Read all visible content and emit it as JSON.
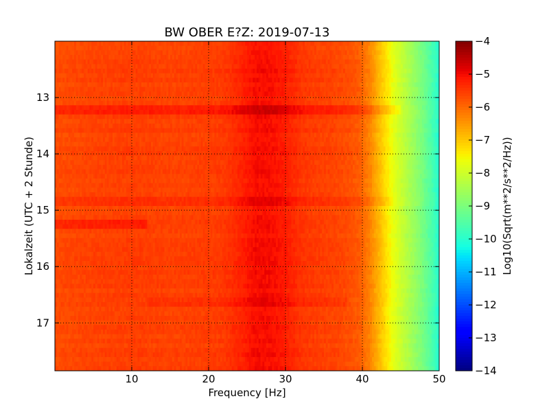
{
  "chart_data": {
    "type": "heatmap",
    "title": "BW OBER E?Z: 2019-07-13",
    "xlabel": "Frequency [Hz]",
    "ylabel": "Lokalzeit (UTC + 2 Stunde)",
    "colorbar_label": "Log10(Sqrt(m**2/s**2/Hz))",
    "xlim": [
      0,
      50
    ],
    "ylim": [
      17.85,
      12.0
    ],
    "y_inverted": true,
    "x_ticks": [
      10,
      20,
      30,
      40,
      50
    ],
    "y_ticks": [
      13,
      14,
      15,
      16,
      17
    ],
    "clim": [
      -14,
      -4
    ],
    "colorbar_ticks": [
      -4,
      -5,
      -6,
      -7,
      -8,
      -9,
      -10,
      -11,
      -12,
      -13,
      -14
    ],
    "colormap": "jet",
    "grid": true,
    "frequency_profile": [
      {
        "freq": 0,
        "log10_amp": -5.7
      },
      {
        "freq": 5,
        "log10_amp": -5.6
      },
      {
        "freq": 10,
        "log10_amp": -5.55
      },
      {
        "freq": 15,
        "log10_amp": -5.6
      },
      {
        "freq": 20,
        "log10_amp": -5.55
      },
      {
        "freq": 22,
        "log10_amp": -5.5
      },
      {
        "freq": 24,
        "log10_amp": -5.3
      },
      {
        "freq": 26,
        "log10_amp": -5.05
      },
      {
        "freq": 28,
        "log10_amp": -5.05
      },
      {
        "freq": 30,
        "log10_amp": -5.2
      },
      {
        "freq": 32,
        "log10_amp": -5.45
      },
      {
        "freq": 34,
        "log10_amp": -5.55
      },
      {
        "freq": 36,
        "log10_amp": -5.6
      },
      {
        "freq": 38,
        "log10_amp": -5.7
      },
      {
        "freq": 39.5,
        "log10_amp": -5.85
      },
      {
        "freq": 41,
        "log10_amp": -6.3
      },
      {
        "freq": 42.5,
        "log10_amp": -7.0
      },
      {
        "freq": 44,
        "log10_amp": -7.7
      },
      {
        "freq": 46,
        "log10_amp": -8.4
      },
      {
        "freq": 48,
        "log10_amp": -9.1
      },
      {
        "freq": 49.5,
        "log10_amp": -9.8
      },
      {
        "freq": 50,
        "log10_amp": -10.1
      }
    ],
    "time_anomalies": [
      {
        "time": 13.2,
        "freq_start": 0,
        "freq_end": 45,
        "delta_log10_amp": 0.35
      },
      {
        "time": 15.25,
        "freq_start": 0,
        "freq_end": 12,
        "delta_log10_amp": 0.35
      },
      {
        "time": 14.85,
        "freq_start": 0,
        "freq_end": 44,
        "delta_log10_amp": 0.15
      },
      {
        "time": 16.65,
        "freq_start": 12,
        "freq_end": 38,
        "delta_log10_amp": 0.15
      }
    ]
  }
}
